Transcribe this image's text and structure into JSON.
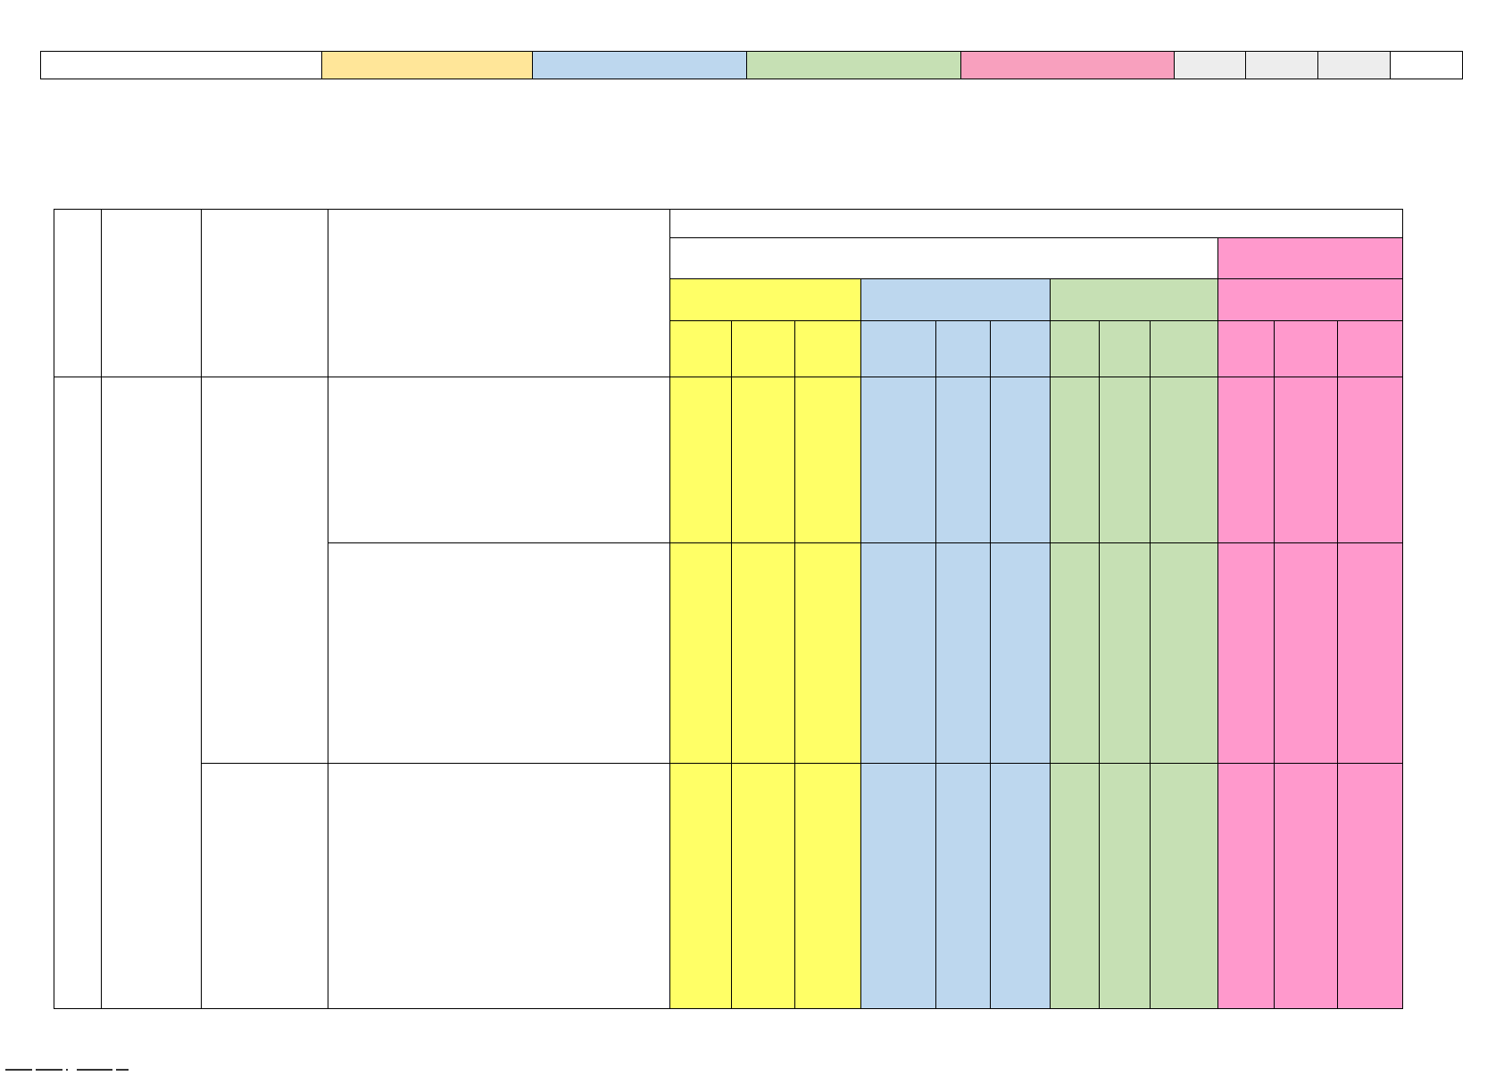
{
  "colors": {
    "yellow_light": "#FFE699",
    "blue": "#BDD7EE",
    "green": "#C6E0B4",
    "pink_legend": "#F8A0BE",
    "gray": "#EDEDED",
    "yellow": "#FFFF66",
    "pink": "#FF99CC",
    "border": "#000000",
    "white": "#FFFFFF"
  },
  "legend": {
    "segments": [
      {
        "name": "legend-label",
        "color": "#FFFFFF",
        "text": ""
      },
      {
        "name": "legend-yellow",
        "color": "#FFE699",
        "text": ""
      },
      {
        "name": "legend-blue",
        "color": "#BDD7EE",
        "text": ""
      },
      {
        "name": "legend-green",
        "color": "#C6E0B4",
        "text": ""
      },
      {
        "name": "legend-pink",
        "color": "#F8A0BE",
        "text": ""
      },
      {
        "name": "legend-gray-1",
        "color": "#EDEDED",
        "text": ""
      },
      {
        "name": "legend-gray-2",
        "color": "#EDEDED",
        "text": ""
      },
      {
        "name": "legend-gray-3",
        "color": "#EDEDED",
        "text": ""
      },
      {
        "name": "legend-end",
        "color": "#FFFFFF",
        "text": ""
      }
    ]
  },
  "grid": {
    "header": {
      "col1": "",
      "col2": "",
      "col3": "",
      "col4": "",
      "top_title": "",
      "sub_title": "",
      "pink_title": "",
      "group_yellow": "",
      "group_blue": "",
      "group_green": "",
      "group_pink": "",
      "sub_columns": [
        "",
        "",
        "",
        "",
        "",
        "",
        "",
        "",
        "",
        "",
        "",
        ""
      ]
    },
    "body": {
      "col1": "",
      "col2": "",
      "group_a": "",
      "group_b": "",
      "rows": [
        {
          "description": "",
          "cells": [
            "",
            "",
            "",
            "",
            "",
            "",
            "",
            "",
            "",
            "",
            "",
            ""
          ]
        },
        {
          "description": "",
          "cells": [
            "",
            "",
            "",
            "",
            "",
            "",
            "",
            "",
            "",
            "",
            "",
            ""
          ]
        },
        {
          "description": "",
          "cells": [
            "",
            "",
            "",
            "",
            "",
            "",
            "",
            "",
            "",
            "",
            "",
            ""
          ]
        }
      ]
    }
  }
}
